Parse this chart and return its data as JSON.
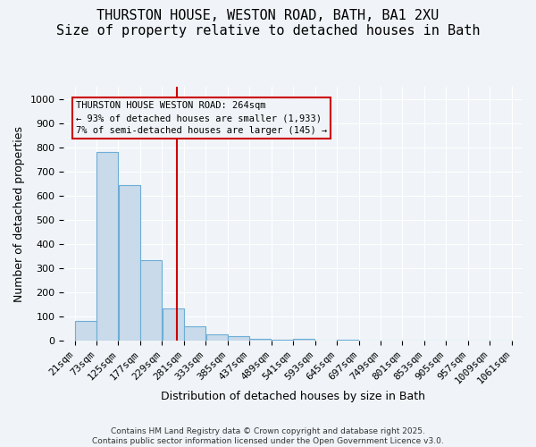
{
  "title_line1": "THURSTON HOUSE, WESTON ROAD, BATH, BA1 2XU",
  "title_line2": "Size of property relative to detached houses in Bath",
  "xlabel": "Distribution of detached houses by size in Bath",
  "ylabel": "Number of detached properties",
  "categories": [
    "21sqm",
    "73sqm",
    "125sqm",
    "177sqm",
    "229sqm",
    "281sqm",
    "333sqm",
    "385sqm",
    "437sqm",
    "489sqm",
    "541sqm",
    "593sqm",
    "645sqm",
    "697sqm",
    "749sqm",
    "801sqm",
    "853sqm",
    "905sqm",
    "957sqm",
    "1009sqm",
    "1061sqm"
  ],
  "bin_edges": [
    21,
    73,
    125,
    177,
    229,
    281,
    333,
    385,
    437,
    489,
    541,
    593,
    645,
    697,
    749,
    801,
    853,
    905,
    957,
    1009,
    1061
  ],
  "bar_heights": [
    84,
    780,
    645,
    335,
    135,
    60,
    27,
    18,
    10,
    5,
    7,
    0,
    5,
    0,
    0,
    0,
    0,
    0,
    0,
    0
  ],
  "bar_color": "#c9daea",
  "bar_edge_color": "#6baed6",
  "vline_x": 264,
  "vline_color": "#cc0000",
  "ylim": [
    0,
    1050
  ],
  "yticks": [
    0,
    100,
    200,
    300,
    400,
    500,
    600,
    700,
    800,
    900,
    1000
  ],
  "annotation_text": "THURSTON HOUSE WESTON ROAD: 264sqm\n← 93% of detached houses are smaller (1,933)\n7% of semi-detached houses are larger (145) →",
  "annotation_box_color": "#cc0000",
  "footer_line1": "Contains HM Land Registry data © Crown copyright and database right 2025.",
  "footer_line2": "Contains public sector information licensed under the Open Government Licence v3.0.",
  "background_color": "#f0f4f8",
  "grid_color": "#ffffff",
  "title_fontsize": 11,
  "axis_label_fontsize": 9,
  "tick_fontsize": 8
}
